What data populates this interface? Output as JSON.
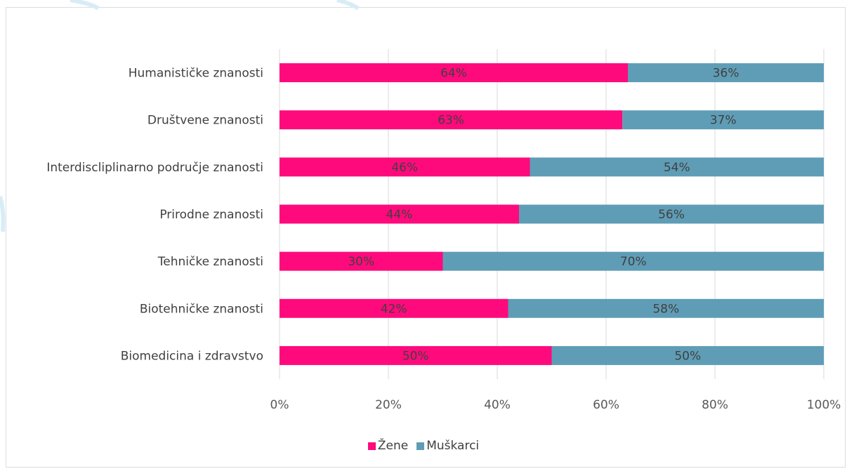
{
  "chart_data": {
    "type": "bar",
    "orientation": "horizontal",
    "stacked": true,
    "categories": [
      "Humanističke znanosti",
      "Društvene znanosti",
      "Interdiscliplinarno područje znanosti",
      "Prirodne znanosti",
      "Tehničke znanosti",
      "Biotehničke znanosti",
      "Biomedicina i zdravstvo"
    ],
    "series": [
      {
        "name": "Žene",
        "color": "#FF0A7C",
        "values": [
          64,
          63,
          46,
          44,
          30,
          42,
          50
        ],
        "labels": [
          "64%",
          "63%",
          "46%",
          "44%",
          "30%",
          "42%",
          "50%"
        ]
      },
      {
        "name": "Muškarci",
        "color": "#5F9DB6",
        "values": [
          36,
          37,
          54,
          56,
          70,
          58,
          50
        ],
        "labels": [
          "36%",
          "37%",
          "54%",
          "56%",
          "70%",
          "58%",
          "50%"
        ]
      }
    ],
    "xlim": [
      0,
      100
    ],
    "x_ticks": [
      "0%",
      "20%",
      "40%",
      "60%",
      "80%",
      "100%"
    ],
    "grid": true,
    "legend_position": "bottom"
  }
}
